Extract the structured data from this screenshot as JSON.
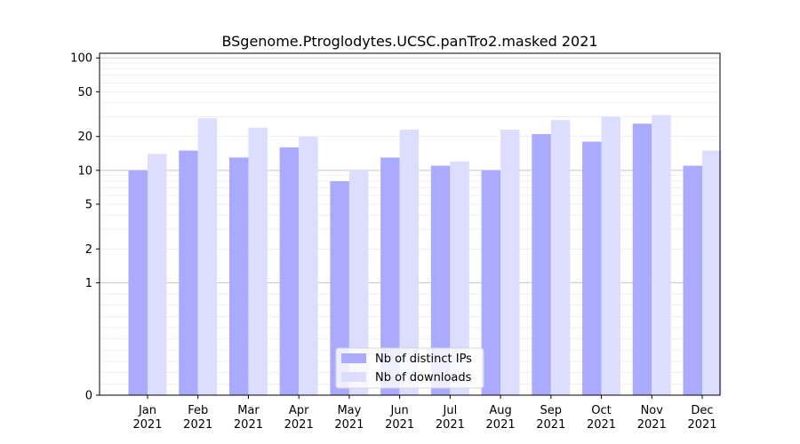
{
  "chart_data": {
    "type": "bar",
    "title": "BSgenome.Ptroglodytes.UCSC.panTro2.masked 2021",
    "xlabel": "",
    "ylabel": "",
    "yscale": "symlog",
    "ylim": [
      0,
      110
    ],
    "grid": "horizontal",
    "legend_position": "lower-center",
    "categories": [
      "Jan\n2021",
      "Feb\n2021",
      "Mar\n2021",
      "Apr\n2021",
      "May\n2021",
      "Jun\n2021",
      "Jul\n2021",
      "Aug\n2021",
      "Sep\n2021",
      "Oct\n2021",
      "Nov\n2021",
      "Dec\n2021"
    ],
    "yticks": [
      0,
      1,
      2,
      5,
      10,
      20,
      50,
      100
    ],
    "series": [
      {
        "name": "Nb of distinct IPs",
        "color": "#aaaaff",
        "values": [
          10,
          15,
          13,
          16,
          8,
          13,
          11,
          10,
          21,
          18,
          26,
          11
        ]
      },
      {
        "name": "Nb of downloads",
        "color": "#ddddff",
        "values": [
          14,
          29,
          24,
          20,
          10,
          23,
          12,
          23,
          28,
          30,
          31,
          15
        ]
      }
    ]
  }
}
